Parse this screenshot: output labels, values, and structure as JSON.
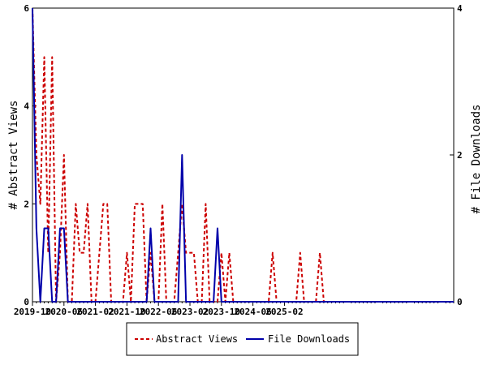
{
  "chart_data": {
    "type": "line",
    "x_labels": [
      "2019-10",
      "2020-06",
      "2021-02",
      "2021-10",
      "2022-06",
      "2023-02",
      "2023-10",
      "2024-06",
      "2025-02"
    ],
    "left_axis": {
      "label": "# Abstract Views",
      "ylim": [
        0,
        6
      ],
      "ticks": [
        "0",
        "2",
        "4",
        "6"
      ]
    },
    "right_axis": {
      "label": "# File Downloads",
      "ylim": [
        0,
        4
      ],
      "ticks": [
        "0",
        "2",
        "4"
      ]
    },
    "legend": [
      "Abstract Views",
      "File Downloads"
    ],
    "legend_position": "bottom-center",
    "grid": false,
    "series": [
      {
        "name": "Abstract Views",
        "axis": "left",
        "color": "#cc0000",
        "style": "dashed",
        "x": [
          0,
          1,
          2,
          3,
          4,
          5,
          6,
          7,
          8,
          9,
          10,
          11,
          12,
          13,
          14,
          15,
          16,
          17,
          18,
          19,
          20,
          21,
          22,
          23,
          24,
          25,
          26,
          27,
          28,
          29,
          30,
          31,
          32,
          33,
          34,
          35,
          36,
          37,
          38,
          39,
          40,
          41,
          42,
          43,
          44,
          45,
          46,
          47,
          48,
          49,
          50,
          51,
          52,
          53,
          54,
          55,
          56,
          57,
          58,
          59,
          60,
          61,
          62,
          63,
          64,
          65,
          66,
          67,
          68,
          69,
          70,
          71,
          72,
          73,
          74,
          75,
          76,
          77,
          78,
          79,
          80,
          81,
          82,
          83,
          84,
          85,
          86,
          87,
          88,
          89,
          90,
          91,
          92,
          93,
          94,
          95,
          96,
          97,
          98,
          99,
          100,
          101,
          102,
          103,
          104,
          105,
          106,
          107
        ],
        "values": [
          6,
          3,
          2,
          5,
          1,
          5,
          0,
          1,
          3,
          0,
          0,
          2,
          1,
          1,
          2,
          0,
          0,
          1,
          2,
          2,
          0,
          0,
          0,
          0,
          1,
          0,
          2,
          2,
          2,
          0,
          1,
          0,
          0,
          2,
          0,
          0,
          0,
          1,
          2,
          1,
          1,
          1,
          0,
          0,
          2,
          0,
          0,
          0,
          1,
          0,
          1,
          0,
          0,
          0,
          0,
          0,
          0,
          0,
          0,
          0,
          0,
          1,
          0,
          0,
          0,
          0,
          0,
          0,
          1,
          0,
          0,
          0,
          0,
          1,
          0,
          0,
          0,
          0,
          0,
          0,
          0,
          0,
          0,
          0,
          0,
          0,
          0,
          0,
          0,
          0,
          0,
          0,
          0,
          0,
          0,
          0,
          0,
          0,
          0,
          0,
          0,
          0,
          0,
          0,
          0,
          0,
          0,
          0
        ]
      },
      {
        "name": "File Downloads",
        "axis": "right",
        "color": "#0000aa",
        "style": "solid",
        "x": [
          0,
          1,
          2,
          3,
          4,
          5,
          6,
          7,
          8,
          9,
          10,
          11,
          12,
          13,
          14,
          15,
          16,
          17,
          18,
          19,
          20,
          21,
          22,
          23,
          24,
          25,
          26,
          27,
          28,
          29,
          30,
          31,
          32,
          33,
          34,
          35,
          36,
          37,
          38,
          39,
          40,
          41,
          42,
          43,
          44,
          45,
          46,
          47,
          48,
          49,
          50,
          51,
          52,
          53,
          54,
          55,
          56,
          57,
          58,
          59,
          60,
          61,
          62,
          63,
          64,
          65,
          66,
          67,
          68,
          69,
          70,
          71,
          72,
          73,
          74,
          75,
          76,
          77,
          78,
          79,
          80,
          81,
          82,
          83,
          84,
          85,
          86,
          87,
          88,
          89,
          90,
          91,
          92,
          93,
          94,
          95,
          96,
          97,
          98,
          99,
          100,
          101,
          102,
          103,
          104,
          105,
          106,
          107
        ],
        "values": [
          4,
          1,
          0,
          1,
          1,
          0,
          0,
          1,
          1,
          0,
          0,
          0,
          0,
          0,
          0,
          0,
          0,
          0,
          0,
          0,
          0,
          0,
          0,
          0,
          0,
          0,
          0,
          0,
          0,
          0,
          1,
          0,
          0,
          0,
          0,
          0,
          0,
          0,
          2,
          0,
          0,
          0,
          0,
          0,
          0,
          0,
          0,
          1,
          0,
          0,
          0,
          0,
          0,
          0,
          0,
          0,
          0,
          0,
          0,
          0,
          0,
          0,
          0,
          0,
          0,
          0,
          0,
          0,
          0,
          0,
          0,
          0,
          0,
          0,
          0,
          0,
          0,
          0,
          0,
          0,
          0,
          0,
          0,
          0,
          0,
          0,
          0,
          0,
          0,
          0,
          0,
          0,
          0,
          0,
          0,
          0,
          0,
          0,
          0,
          0,
          0,
          0,
          0,
          0,
          0,
          0,
          0,
          0
        ]
      }
    ]
  }
}
